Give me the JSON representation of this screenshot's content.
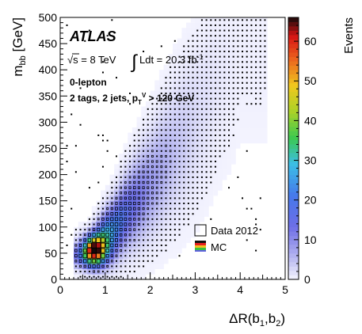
{
  "chart_data": {
    "type": "heatmap",
    "experiment": "ATLAS",
    "energy_label": "√s = 8 TeV",
    "lumi_label": "∫Ldt = 20.3 fb",
    "lumi_sup": "-1",
    "channel": "0-lepton",
    "selection": "2 tags, 2 jets, p",
    "selection_sub": "T",
    "selection_sup": "V",
    "selection_tail": " > 120 GeV",
    "xlabel": "ΔR(b",
    "xlabel_sub1": "1",
    "xlabel_mid": ",b",
    "xlabel_sub2": "2",
    "xlabel_end": ")",
    "ylabel": "m",
    "ylabel_sub": "bb",
    "ylabel_unit": " [GeV]",
    "xlim": [
      0,
      5
    ],
    "ylim": [
      0,
      500
    ],
    "zlim": [
      0,
      66
    ],
    "zlabel": "Events",
    "x_ticks": [
      0,
      1,
      2,
      3,
      4,
      5
    ],
    "y_ticks": [
      0,
      50,
      100,
      150,
      200,
      250,
      300,
      350,
      400,
      450,
      500
    ],
    "z_ticks": [
      0,
      10,
      20,
      30,
      40,
      50,
      60
    ],
    "bin_width_x": 0.1,
    "bin_width_y": 10,
    "mc_band": {
      "description_points": [
        {
          "dr": 0.5,
          "mbb": 45,
          "width_mbb": 15,
          "events": 10
        },
        {
          "dr": 0.8,
          "mbb": 65,
          "width_mbb": 25,
          "events": 25
        },
        {
          "dr": 1.0,
          "mbb": 80,
          "width_mbb": 30,
          "events": 30
        },
        {
          "dr": 1.2,
          "mbb": 95,
          "width_mbb": 35,
          "events": 24
        },
        {
          "dr": 1.5,
          "mbb": 130,
          "width_mbb": 45,
          "events": 16
        },
        {
          "dr": 2.0,
          "mbb": 180,
          "width_mbb": 60,
          "events": 9
        },
        {
          "dr": 2.5,
          "mbb": 240,
          "width_mbb": 75,
          "events": 5
        },
        {
          "dr": 3.0,
          "mbb": 300,
          "width_mbb": 90,
          "events": 2.5
        },
        {
          "dr": 3.5,
          "mbb": 370,
          "width_mbb": 100,
          "events": 1.2
        },
        {
          "dr": 4.0,
          "mbb": 430,
          "width_mbb": 110,
          "events": 0.5
        }
      ]
    },
    "data_peak": {
      "dr": 0.75,
      "mbb": 55,
      "events": 66
    },
    "legend": [
      {
        "label": "Data 2012",
        "kind": "box"
      },
      {
        "label": "MC",
        "kind": "color"
      }
    ],
    "legend_position": "bottom-right"
  }
}
